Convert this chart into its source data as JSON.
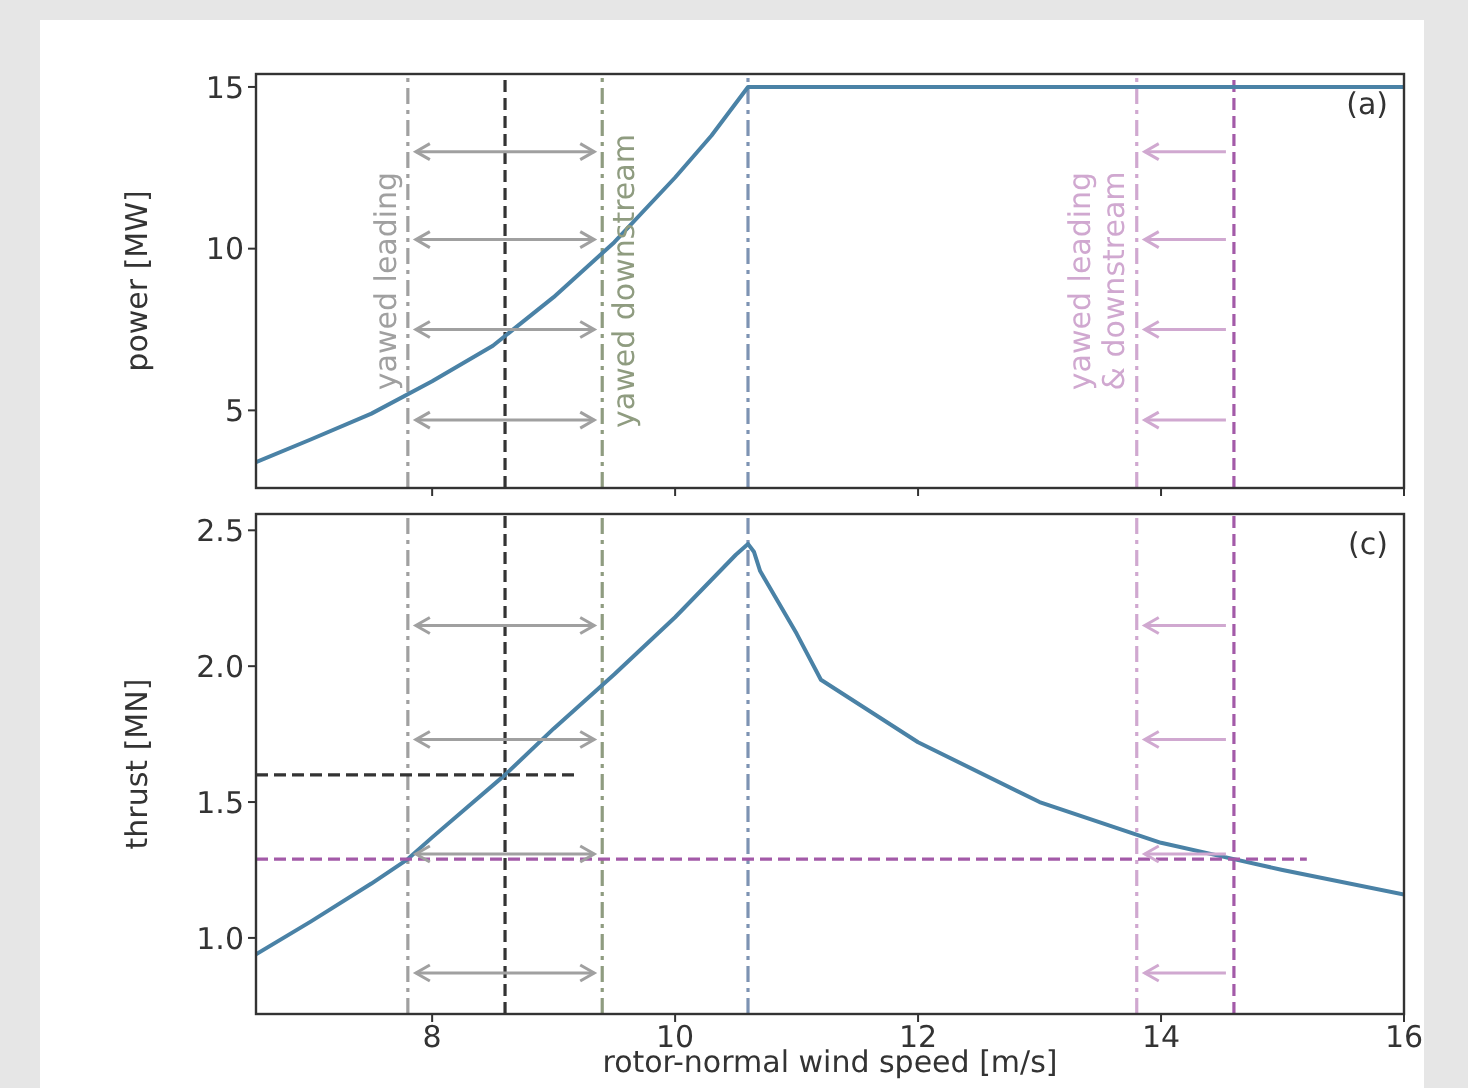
{
  "chart_data": [
    {
      "type": "line",
      "ylabel": "power [MW]",
      "xlim": [
        6.55,
        16
      ],
      "xticks": [
        8,
        10,
        12,
        14,
        16
      ],
      "ylim": [
        2.6,
        15.4
      ],
      "yticks": [
        5,
        10,
        15
      ],
      "tick_labels": "y",
      "series": [
        {
          "color": "#4a82a6",
          "x": [
            6.55,
            7,
            7.5,
            8,
            8.5,
            9,
            9.5,
            10,
            10.3,
            10.6,
            16
          ],
          "values": [
            3.4,
            4.1,
            4.9,
            5.9,
            7.0,
            8.5,
            10.2,
            12.2,
            13.5,
            15,
            15
          ]
        }
      ],
      "ref_lines": [
        {
          "axis": "x",
          "value": 7.8,
          "color": "#a0a0a0",
          "line_style": "dashdot"
        },
        {
          "axis": "x",
          "value": 8.6,
          "color": "#333333",
          "line_style": "dashed"
        },
        {
          "axis": "x",
          "value": 9.4,
          "color": "#8f9c80",
          "line_style": "dashdot"
        },
        {
          "axis": "x",
          "value": 10.6,
          "color": "#7d93b3",
          "line_style": "dashdot"
        },
        {
          "axis": "x",
          "value": 13.8,
          "color": "#d0a8d0",
          "line_style": "dashdot"
        },
        {
          "axis": "x",
          "value": 14.6,
          "color": "#a35aa8",
          "line_style": "dashed"
        }
      ],
      "annotations": [
        "(a)",
        {
          "text": "yawed leading",
          "x": 7.8,
          "y": 9
        },
        {
          "text": "yawed downstream",
          "x": 9.4,
          "y": 9
        },
        {
          "text": "yawed leading\n& downstream",
          "x": 13.8,
          "y": 9
        }
      ]
    },
    {
      "type": "line",
      "xlabel": "rotor-normal wind speed [m/s]",
      "ylabel": "thrust [MN]",
      "xlim": [
        6.55,
        16
      ],
      "xticks": [
        8,
        10,
        12,
        14,
        16
      ],
      "ylim": [
        0.72,
        2.56
      ],
      "yticks": [
        {
          "value": 1,
          "label": "1.0"
        },
        1.5,
        {
          "value": 2,
          "label": "2.0"
        },
        2.5
      ],
      "series": [
        {
          "color": "#4a82a6",
          "x": [
            6.55,
            7,
            7.5,
            7.8,
            8,
            8.6,
            9,
            9.5,
            10,
            10.5,
            10.6,
            10.65,
            10.7,
            11,
            11.2,
            12,
            13,
            14,
            14.6,
            15,
            16
          ],
          "values": [
            0.94,
            1.06,
            1.2,
            1.29,
            1.37,
            1.6,
            1.77,
            1.97,
            2.18,
            2.41,
            2.45,
            2.42,
            2.35,
            2.12,
            1.95,
            1.72,
            1.5,
            1.35,
            1.29,
            1.25,
            1.16
          ]
        },
        {
          "color": "#333333",
          "line_style": "dashed",
          "x": [
            6.55,
            9.2
          ],
          "values": [
            1.6,
            1.6
          ]
        },
        {
          "color": "#a35aa8",
          "line_style": "dashed",
          "x": [
            6.55,
            15.2
          ],
          "values": [
            1.29,
            1.29
          ]
        }
      ],
      "ref_lines": [
        {
          "axis": "x",
          "value": 7.8,
          "color": "#a0a0a0",
          "line_style": "dashdot"
        },
        {
          "axis": "x",
          "value": 8.6,
          "color": "#333333",
          "line_style": "dashed"
        },
        {
          "axis": "x",
          "value": 9.4,
          "color": "#8f9c80",
          "line_style": "dashdot"
        },
        {
          "axis": "x",
          "value": 10.6,
          "color": "#7d93b3",
          "line_style": "dashdot"
        },
        {
          "axis": "x",
          "value": 13.8,
          "color": "#d0a8d0",
          "line_style": "dashdot"
        },
        {
          "axis": "x",
          "value": 14.6,
          "color": "#a35aa8",
          "line_style": "dashed"
        }
      ],
      "annotations": [
        "(c)"
      ]
    }
  ]
}
